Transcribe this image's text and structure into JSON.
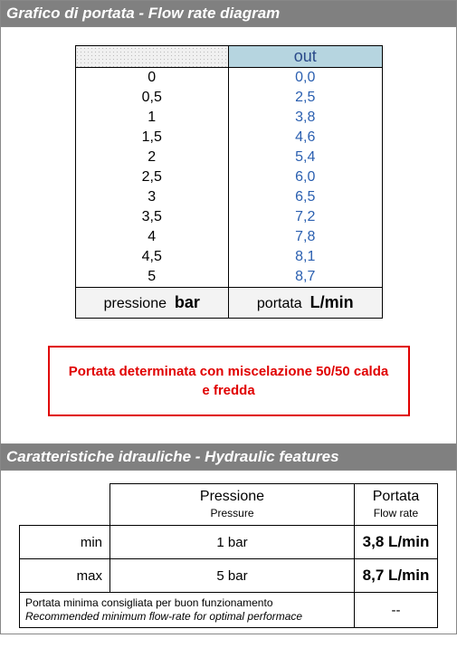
{
  "section1": {
    "title": "Grafico di portata - Flow rate diagram",
    "table": {
      "header_right": "out",
      "rows": [
        {
          "in": "0",
          "out": "0,0"
        },
        {
          "in": "0,5",
          "out": "2,5"
        },
        {
          "in": "1",
          "out": "3,8"
        },
        {
          "in": "1,5",
          "out": "4,6"
        },
        {
          "in": "2",
          "out": "5,4"
        },
        {
          "in": "2,5",
          "out": "6,0"
        },
        {
          "in": "3",
          "out": "6,5"
        },
        {
          "in": "3,5",
          "out": "7,2"
        },
        {
          "in": "4",
          "out": "7,8"
        },
        {
          "in": "4,5",
          "out": "8,1"
        },
        {
          "in": "5",
          "out": "8,7"
        }
      ],
      "unit_left_label": "pressione",
      "unit_left_bold": "bar",
      "unit_right_label": "portata",
      "unit_right_bold": "L/min"
    },
    "note": "Portata determinata con miscelazione 50/50 calda e fredda"
  },
  "section2": {
    "title": "Caratteristiche idrauliche - Hydraulic features",
    "col1_it": "Pressione",
    "col1_en": "Pressure",
    "col2_it": "Portata",
    "col2_en": "Flow rate",
    "rows": [
      {
        "label": "min",
        "pressure": "1 bar",
        "flow": "3,8 L/min"
      },
      {
        "label": "max",
        "pressure": "5 bar",
        "flow": "8,7 L/min"
      }
    ],
    "rec_it": "Portata minima consigliata per buon funzionamento",
    "rec_en": "Recommended minimum flow-rate for optimal performace",
    "rec_val": "--"
  }
}
